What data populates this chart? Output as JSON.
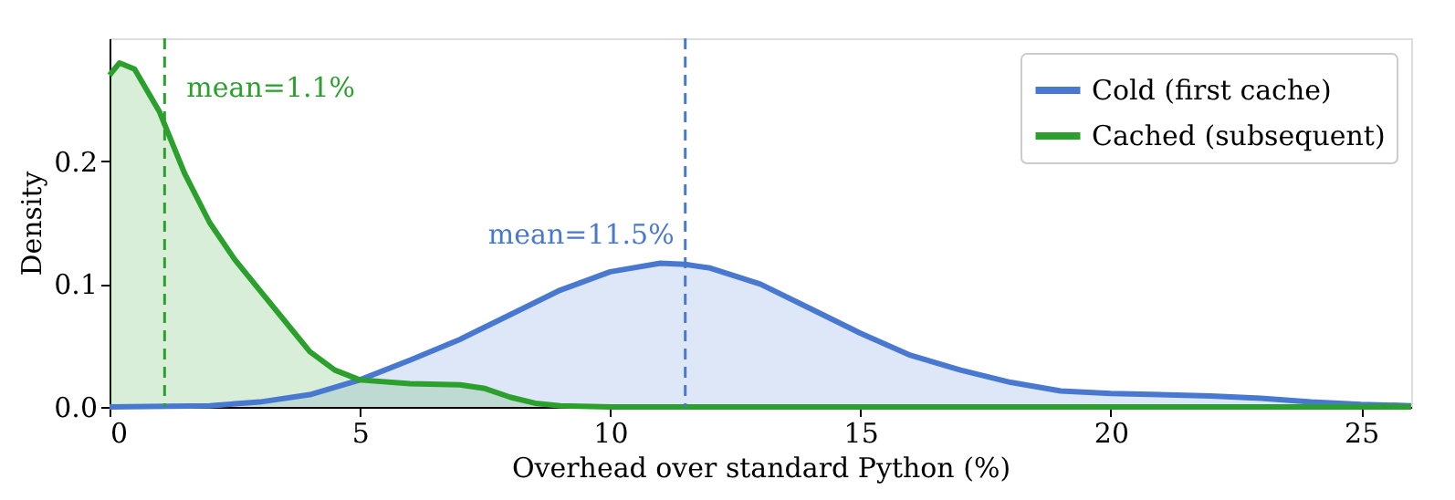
{
  "chart_data": {
    "type": "area",
    "xlabel": "Overhead over standard Python (%)",
    "ylabel": "Density",
    "xlim": [
      0,
      26
    ],
    "xticks": [
      0,
      5,
      10,
      15,
      20,
      25
    ],
    "ylim": [
      0,
      0.3
    ],
    "yticks": [
      {
        "value": 0,
        "label": "0.0"
      },
      {
        "value": 0.1,
        "label": "0.1"
      },
      {
        "value": 0.2,
        "label": "0.2"
      }
    ],
    "grid": false,
    "legend": "top right",
    "marker": "none",
    "line_style": "solid",
    "series": [
      {
        "name": "Cold (first cache)",
        "color": "#4878d0",
        "x": [
          0,
          2,
          3,
          4,
          5,
          6,
          7,
          8,
          9,
          10,
          11,
          11.5,
          12,
          13,
          14,
          15,
          16,
          17,
          18,
          19,
          20,
          22,
          23,
          24,
          25,
          26
        ],
        "values": [
          0,
          0.001,
          0.004,
          0.01,
          0.022,
          0.038,
          0.055,
          0.075,
          0.095,
          0.11,
          0.117,
          0.116,
          0.113,
          0.1,
          0.08,
          0.06,
          0.042,
          0.03,
          0.02,
          0.013,
          0.011,
          0.009,
          0.007,
          0.004,
          0.002,
          0.001
        ]
      },
      {
        "name": "Cached (subsequent)",
        "color": "#2ca02c",
        "x": [
          0,
          0.2,
          0.5,
          1,
          1.5,
          2,
          2.5,
          3,
          3.5,
          4,
          4.5,
          5,
          6,
          7,
          7.5,
          8,
          8.5,
          9,
          10,
          26
        ],
        "values": [
          0.27,
          0.28,
          0.275,
          0.24,
          0.19,
          0.15,
          0.12,
          0.095,
          0.07,
          0.045,
          0.03,
          0.022,
          0.019,
          0.018,
          0.015,
          0.008,
          0.003,
          0.001,
          0,
          0
        ]
      }
    ],
    "ref_lines": [
      {
        "axis": "x",
        "value": 1.1,
        "color": "#2ca02c",
        "line_style": "dashed"
      },
      {
        "axis": "x",
        "value": 11.5,
        "color": "#4878d0",
        "line_style": "dashed"
      }
    ],
    "annotations": [
      {
        "text": "mean=1.1%",
        "x": 1.1,
        "y": 0.26
      },
      {
        "text": "mean=11.5%",
        "x": 11.5,
        "y": 0.14
      }
    ]
  }
}
